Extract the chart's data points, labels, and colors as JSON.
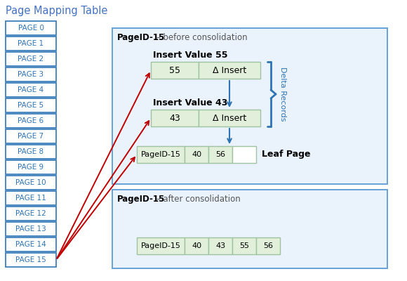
{
  "title": "Page Mapping Table",
  "title_color": "#4472C4",
  "background_color": "#ffffff",
  "page_list": [
    "PAGE 0",
    "PAGE 1",
    "PAGE 2",
    "PAGE 3",
    "PAGE 4",
    "PAGE 5",
    "PAGE 6",
    "PAGE 7",
    "PAGE 8",
    "PAGE 9",
    "PAGE 10",
    "PAGE 11",
    "PAGE 12",
    "PAGE 13",
    "PAGE 14",
    "PAGE 15"
  ],
  "page_box_fill": "#ffffff",
  "page_box_edge": "#2E74B5",
  "page_text_color": "#2E74B5",
  "before_label_bold": "PageID-15",
  "before_label_rest": " – before consolidation",
  "after_label_bold": "PageID-15",
  "after_label_rest": " – after consolidation",
  "insert55_label": "Insert Value 55",
  "insert43_label": "Insert Value 43",
  "leaf_label": "Leaf Page",
  "delta_label": "Delta Records",
  "box_border_color": "#5B9BD5",
  "box_fill": "#EAF2FB",
  "green_fill": "#E2EFDA",
  "green_edge": "#9DC3A0",
  "gray_fill": "#ffffff",
  "gray_edge": "#9DC3A0",
  "leaf_fill": "#E2EFDA",
  "leaf_edge": "#9DC3A0",
  "delta_color": "#2E74B5",
  "red_arrow_color": "#C00000",
  "blue_arrow_color": "#2E74B5"
}
